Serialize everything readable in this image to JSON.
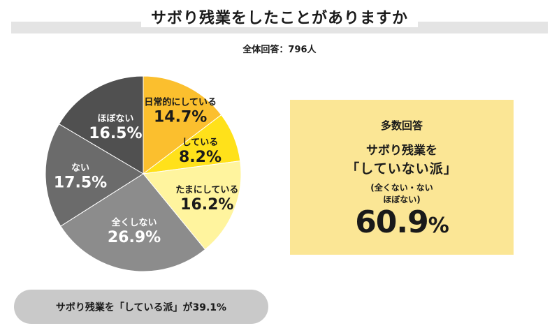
{
  "title": "サボり残業をしたことがありますか",
  "subtitle": "全体回答：796人",
  "chart_data": {
    "type": "pie",
    "title": "サボり残業をしたことがありますか",
    "subtitle": "全体回答：796人",
    "slices": [
      {
        "label": "日常的にしている",
        "value": 14.7,
        "display": "14.7%",
        "color": "#fbbf2e",
        "text_color": "#1a1a1a"
      },
      {
        "label": "している",
        "value": 8.2,
        "display": "8.2%",
        "color": "#ffe11a",
        "text_color": "#1a1a1a"
      },
      {
        "label": "たまにしている",
        "value": 16.2,
        "display": "16.2%",
        "color": "#fff49e",
        "text_color": "#1a1a1a"
      },
      {
        "label": "全くしない",
        "value": 26.9,
        "display": "26.9%",
        "color": "#8c8c8c",
        "text_color": "#ffffff"
      },
      {
        "label": "ない",
        "value": 17.5,
        "display": "17.5%",
        "color": "#6b6b6b",
        "text_color": "#ffffff"
      },
      {
        "label": "ほぼない",
        "value": 16.5,
        "display": "16.5%",
        "color": "#505050",
        "text_color": "#ffffff"
      }
    ]
  },
  "summary_box": {
    "heading": "多数回答",
    "line1": "サボり残業を",
    "line2": "「していない派」",
    "note1": "(全くない・ない",
    "note2": "ほぼない)",
    "value": "60.9",
    "unit": "%",
    "color": "#fbe695"
  },
  "footer_pill": {
    "text": "サボり残業を「している派」が39.1%",
    "color": "#c9c9c9"
  }
}
